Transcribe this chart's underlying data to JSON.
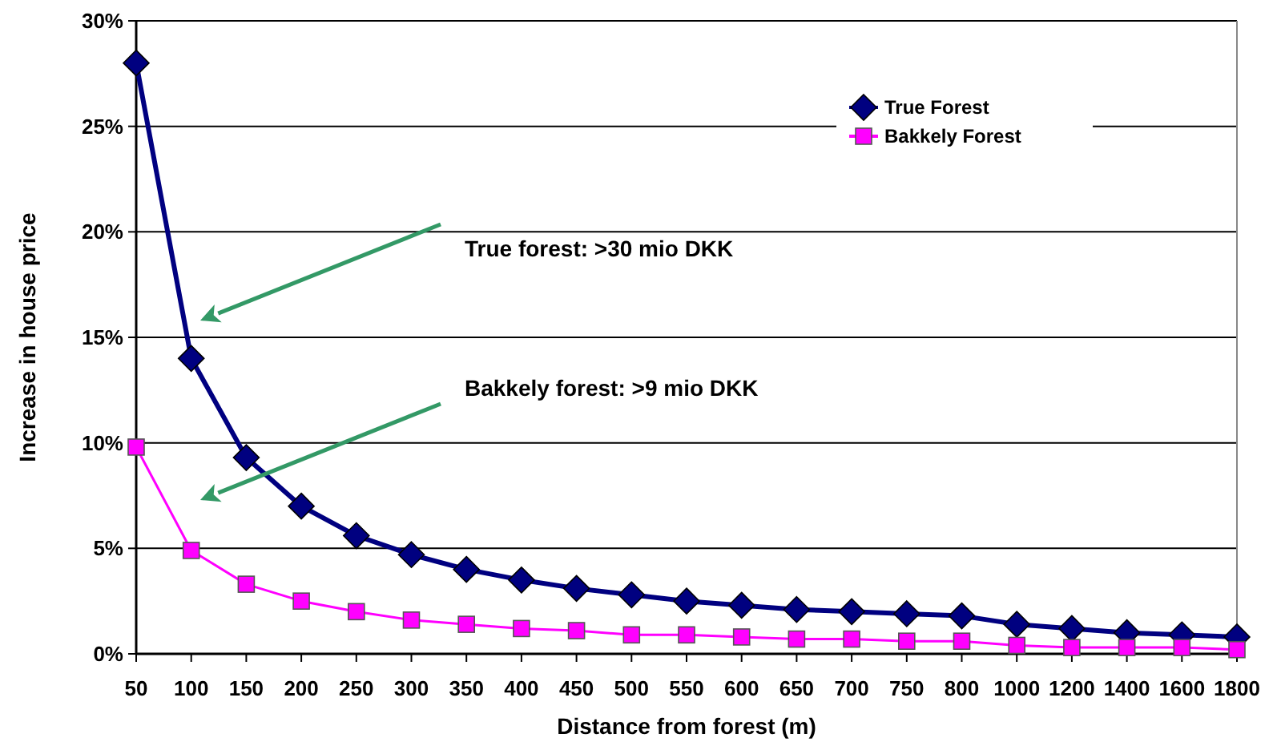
{
  "chart_data": {
    "type": "line",
    "xlabel": "Distance from forest  (m)",
    "ylabel": "Increase in house price",
    "categories": [
      "50",
      "100",
      "150",
      "200",
      "250",
      "300",
      "350",
      "400",
      "450",
      "500",
      "550",
      "600",
      "650",
      "700",
      "750",
      "800",
      "1000",
      "1200",
      "1400",
      "1600",
      "1800"
    ],
    "series": [
      {
        "name": "True Forest",
        "color": "#000080",
        "marker": "diamond",
        "values": [
          28,
          14,
          9.3,
          7.0,
          5.6,
          4.7,
          4.0,
          3.5,
          3.1,
          2.8,
          2.5,
          2.3,
          2.1,
          2.0,
          1.9,
          1.8,
          1.4,
          1.2,
          1.0,
          0.9,
          0.8
        ]
      },
      {
        "name": "Bakkely Forest",
        "color": "#ff00ff",
        "marker": "square",
        "values": [
          9.8,
          4.9,
          3.3,
          2.5,
          2.0,
          1.6,
          1.4,
          1.2,
          1.1,
          0.9,
          0.9,
          0.8,
          0.7,
          0.7,
          0.6,
          0.6,
          0.4,
          0.3,
          0.3,
          0.3,
          0.2
        ]
      }
    ],
    "ylim": [
      0,
      30
    ],
    "yticks": [
      {
        "value": 0,
        "label": "0%"
      },
      {
        "value": 5,
        "label": "5%"
      },
      {
        "value": 10,
        "label": "10%"
      },
      {
        "value": 15,
        "label": "15%"
      },
      {
        "value": 20,
        "label": "20%"
      },
      {
        "value": 25,
        "label": "25%"
      },
      {
        "value": 30,
        "label": "30%"
      }
    ],
    "grid": "y",
    "legend": "top right",
    "annotations": [
      "True forest: >30 mio DKK",
      "Bakkely forest: >9 mio DKK"
    ]
  }
}
